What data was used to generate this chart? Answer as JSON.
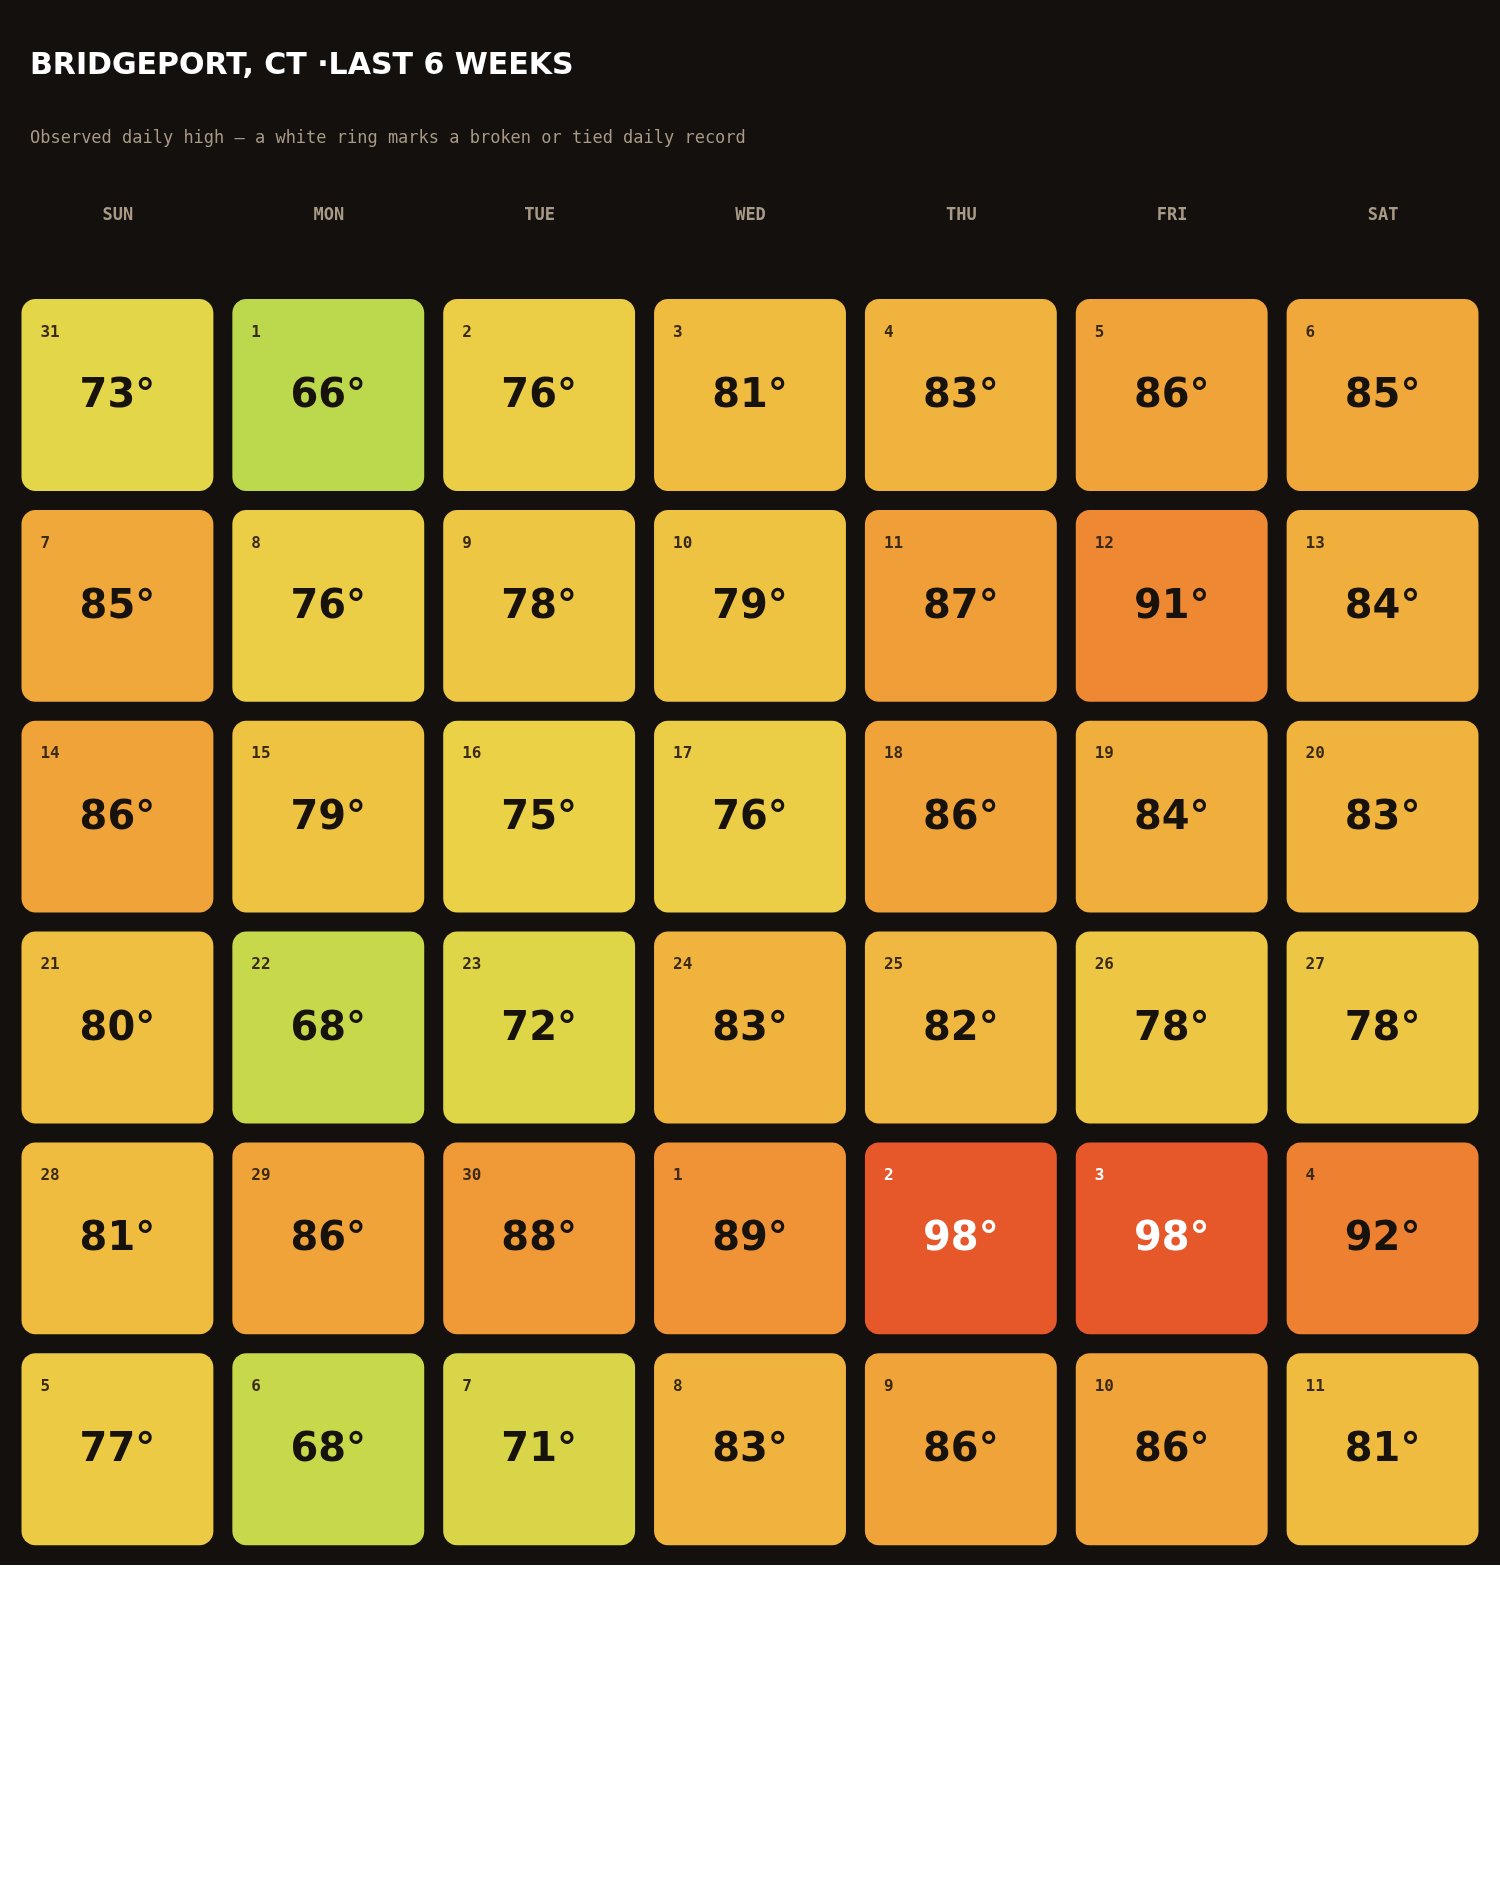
{
  "chart_data": {
    "type": "heatmap",
    "title": "BRIDGEPORT, CT ·LAST 6 WEEKS",
    "subtitle": "Observed daily high — a white ring marks a broken or tied daily record",
    "categories": [
      "SUN",
      "MON",
      "TUE",
      "WED",
      "THU",
      "FRI",
      "SAT"
    ],
    "y_categories": [
      null,
      null,
      null,
      null,
      null,
      null
    ],
    "cells": [
      [
        73,
        66,
        76,
        81,
        83,
        86,
        85
      ],
      [
        85,
        76,
        78,
        79,
        87,
        91,
        84
      ],
      [
        86,
        79,
        75,
        76,
        86,
        84,
        83
      ],
      [
        80,
        68,
        72,
        83,
        82,
        78,
        78
      ],
      [
        81,
        86,
        88,
        89,
        98,
        98,
        92
      ],
      [
        77,
        68,
        71,
        83,
        86,
        86,
        81
      ]
    ],
    "cell_labels": [
      [
        "73°",
        "66°",
        "76°",
        "81°",
        "83°",
        "86°",
        "85°"
      ],
      [
        "85°",
        "76°",
        "78°",
        "79°",
        "87°",
        "91°",
        "84°"
      ],
      [
        "86°",
        "79°",
        "75°",
        "76°",
        "86°",
        "84°",
        "83°"
      ],
      [
        "80°",
        "68°",
        "72°",
        "83°",
        "82°",
        "78°",
        "78°"
      ],
      [
        "81°",
        "86°",
        "88°",
        "89°",
        "98°",
        "98°",
        "92°"
      ],
      [
        "77°",
        "68°",
        "71°",
        "83°",
        "86°",
        "86°",
        "81°"
      ]
    ],
    "annotations": [
      "31",
      "1",
      "2",
      "3",
      "4",
      "5",
      "6",
      "7",
      "8",
      "9",
      "10",
      "11",
      "12",
      "13",
      "14",
      "15",
      "16",
      "17",
      "18",
      "19",
      "20",
      "21",
      "22",
      "23",
      "24",
      "25",
      "26",
      "27",
      "28",
      "29",
      "30",
      "1",
      "2",
      "3",
      "4",
      "5",
      "6",
      "7",
      "8",
      "9",
      "10",
      "11"
    ]
  }
}
